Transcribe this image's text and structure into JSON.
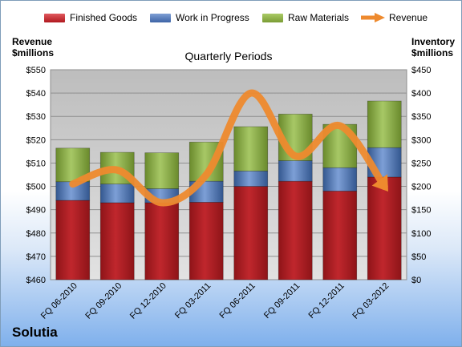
{
  "colors": {
    "finished_goods": "#c0272d",
    "work_in_progress": "#4f74b3",
    "raw_materials": "#8eb045",
    "revenue": "#ee8a2e",
    "plot_bg": "#c9c9c9"
  },
  "company": "Solutia",
  "chart_data": {
    "type": "bar",
    "stacked": true,
    "title": "Quarterly Periods",
    "ylabel_left": "Revenue $millions",
    "ylabel_right": "Inventory $millions",
    "categories": [
      "FQ 06-2010",
      "FQ 09-2010",
      "FQ 12-2010",
      "FQ 03-2011",
      "FQ 06-2011",
      "FQ 09-2011",
      "FQ 12-2011",
      "FQ 03-2012"
    ],
    "ylim_left": [
      460,
      550
    ],
    "yticks_left": [
      "$460",
      "$470",
      "$480",
      "$490",
      "$500",
      "$510",
      "$520",
      "$530",
      "$540",
      "$550"
    ],
    "ylim_right": [
      0,
      450
    ],
    "yticks_right": [
      "$0",
      "$50",
      "$100",
      "$150",
      "$200",
      "$250",
      "$300",
      "$350",
      "$400",
      "$450"
    ],
    "legend_position": "top",
    "grid": true,
    "series": [
      {
        "name": "Finished Goods",
        "axis": "right",
        "kind": "bar",
        "values": [
          170,
          165,
          165,
          166,
          200,
          211,
          190,
          220
        ]
      },
      {
        "name": "Work in Progress",
        "axis": "right",
        "kind": "bar",
        "values": [
          40,
          40,
          30,
          45,
          33,
          44,
          50,
          63
        ]
      },
      {
        "name": "Raw Materials",
        "axis": "right",
        "kind": "bar",
        "values": [
          72,
          68,
          77,
          84,
          95,
          100,
          93,
          100
        ]
      },
      {
        "name": "Revenue",
        "axis": "left",
        "kind": "line",
        "values": [
          501,
          507,
          493,
          505,
          540,
          513,
          526,
          500
        ]
      }
    ]
  }
}
